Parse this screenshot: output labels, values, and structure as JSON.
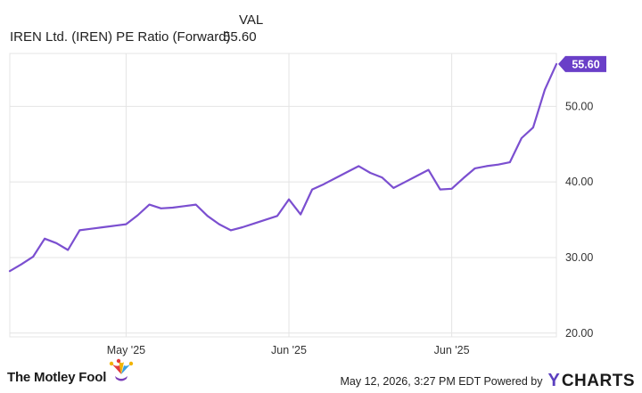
{
  "legend": {
    "column_header": "VAL",
    "series_name": "IREN Ltd. (IREN) PE Ratio (Forward)",
    "series_value": "55.60"
  },
  "footer": {
    "brand": "The Motley Fool",
    "credit": "May 12, 2026, 3:27 PM EDT Powered by",
    "ycharts_mark": "Y",
    "ycharts_text": "CHARTS"
  },
  "colors": {
    "line": "#7b4fd0",
    "label_bg": "#6a3fc8",
    "grid": "#e4e4e4",
    "axis_text": "#333333"
  },
  "chart_data": {
    "type": "line",
    "title": "",
    "xlabel": "",
    "ylabel": "",
    "ylim": [
      19.5,
      57
    ],
    "y_ticks": [
      "20.00",
      "30.00",
      "40.00",
      "50.00"
    ],
    "y_tick_values": [
      20,
      30,
      40,
      50
    ],
    "x_ticks": [
      "May '25",
      "Jun '25",
      "Jun '25"
    ],
    "x_tick_index": [
      10,
      24,
      38
    ],
    "last_value_label": "55.60",
    "series": [
      {
        "name": "IREN Ltd. (IREN) PE Ratio (Forward)",
        "values": [
          28.2,
          29.1,
          30.1,
          32.5,
          31.9,
          31.0,
          33.6,
          33.8,
          34.0,
          34.2,
          34.4,
          35.6,
          37.0,
          36.5,
          36.6,
          36.8,
          37.0,
          35.5,
          34.4,
          33.6,
          34.0,
          34.5,
          35.0,
          35.5,
          37.7,
          35.7,
          39.0,
          39.7,
          40.5,
          41.3,
          42.1,
          41.2,
          40.6,
          39.2,
          40.0,
          40.8,
          41.6,
          39.0,
          39.1,
          40.5,
          41.8,
          42.1,
          42.3,
          42.6,
          45.8,
          47.2,
          52.2,
          55.6
        ]
      }
    ]
  }
}
